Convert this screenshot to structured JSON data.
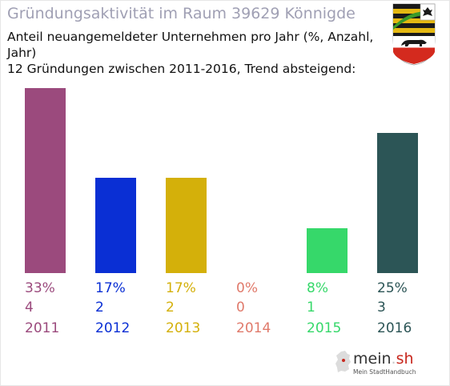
{
  "header": {
    "title": "Gründungsaktivität im Raum 39629 Könnigde",
    "subtitle_line1": "Anteil neuangemeldeter Unternehmen pro Jahr (%, Anzahl, Jahr)",
    "subtitle_line2": "12 Gründungen zwischen 2011-2016, Trend absteigend:"
  },
  "emblem": {
    "name": "coat-of-arms-icon"
  },
  "logo": {
    "brand_main": "mein",
    "brand_dot": ".",
    "brand_tld": "sh",
    "tagline": "Mein StadtHandbuch"
  },
  "chart_data": {
    "type": "bar",
    "title": "Gründungsaktivität im Raum 39629 Könnigde",
    "categories": [
      "2011",
      "2012",
      "2013",
      "2014",
      "2015",
      "2016"
    ],
    "values": [
      33,
      17,
      17,
      0,
      8,
      25
    ],
    "percent_labels": [
      "33%",
      "17%",
      "17%",
      "0%",
      "8%",
      "25%"
    ],
    "count_labels": [
      "4",
      "2",
      "2",
      "0",
      "1",
      "3"
    ],
    "colors": [
      "#9b4a7d",
      "#0a2fd4",
      "#d4b00a",
      "#e07a6b",
      "#36d86a",
      "#2c5556"
    ],
    "grid": false,
    "legend": "none"
  }
}
